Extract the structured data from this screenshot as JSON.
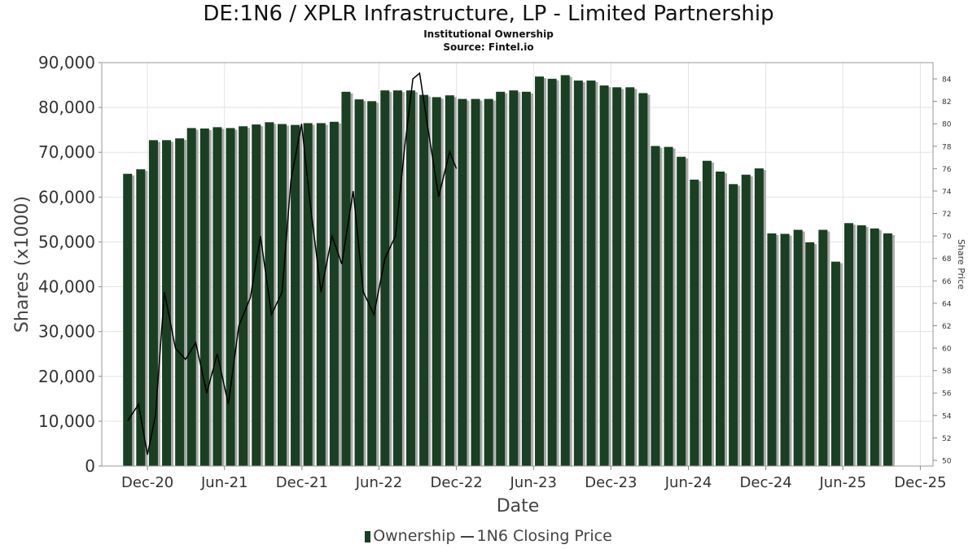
{
  "title": "DE:1N6 / XPLR Infrastructure, LP - Limited Partnership",
  "subtitle": "Institutional Ownership",
  "source": "Source: Fintel.io",
  "chart_data": {
    "type": "bar",
    "xlabel": "Date",
    "ylabel": "Shares (x1000)",
    "y2label": "Share Price",
    "ylim": [
      0,
      90000
    ],
    "y2lim": [
      50,
      85
    ],
    "xlim": [
      "2020-08-15",
      "2025-12-31"
    ],
    "y_ticks": [
      "0",
      "10,000",
      "20,000",
      "30,000",
      "40,000",
      "50,000",
      "60,000",
      "70,000",
      "80,000",
      "90,000"
    ],
    "y2_ticks": [
      "50",
      "52",
      "54",
      "56",
      "58",
      "60",
      "62",
      "64",
      "66",
      "68",
      "70",
      "72",
      "74",
      "76",
      "78",
      "80",
      "82",
      "84"
    ],
    "x_ticks": [
      {
        "label": "Dec-20",
        "date": "2020-12-01"
      },
      {
        "label": "Jun-21",
        "date": "2021-06-01"
      },
      {
        "label": "Dec-21",
        "date": "2021-12-01"
      },
      {
        "label": "Jun-22",
        "date": "2022-06-01"
      },
      {
        "label": "Dec-22",
        "date": "2022-12-01"
      },
      {
        "label": "Jun-23",
        "date": "2023-06-01"
      },
      {
        "label": "Dec-23",
        "date": "2023-12-01"
      },
      {
        "label": "Jun-24",
        "date": "2024-06-01"
      },
      {
        "label": "Dec-24",
        "date": "2024-12-01"
      },
      {
        "label": "Jun-25",
        "date": "2025-06-01"
      },
      {
        "label": "Dec-25",
        "date": "2025-12-01"
      }
    ],
    "grid": true,
    "legend_position": "bottom-center",
    "series": [
      {
        "name": "Ownership",
        "type": "bar",
        "color": "#1a3f22",
        "x": [
          "2020-10-15",
          "2020-11-15",
          "2020-12-15",
          "2021-01-15",
          "2021-02-15",
          "2021-03-15",
          "2021-04-15",
          "2021-05-15",
          "2021-06-15",
          "2021-07-15",
          "2021-08-15",
          "2021-09-15",
          "2021-10-15",
          "2021-11-15",
          "2021-12-15",
          "2022-01-15",
          "2022-02-15",
          "2022-03-15",
          "2022-04-15",
          "2022-05-15",
          "2022-06-15",
          "2022-07-15",
          "2022-08-15",
          "2022-09-15",
          "2022-10-15",
          "2022-11-15",
          "2022-12-15",
          "2023-01-15",
          "2023-02-15",
          "2023-03-15",
          "2023-04-15",
          "2023-05-15",
          "2023-06-15",
          "2023-07-15",
          "2023-08-15",
          "2023-09-15",
          "2023-10-15",
          "2023-11-15",
          "2023-12-15",
          "2024-01-15",
          "2024-02-15",
          "2024-03-15",
          "2024-04-15",
          "2024-05-15",
          "2024-06-15",
          "2024-07-15",
          "2024-08-15",
          "2024-09-15",
          "2024-10-15",
          "2024-11-15",
          "2024-12-15",
          "2025-01-15",
          "2025-02-15",
          "2025-03-15",
          "2025-04-15",
          "2025-05-15",
          "2025-06-15",
          "2025-07-15",
          "2025-08-15",
          "2025-09-15"
        ],
        "values": [
          65200,
          66200,
          72700,
          72700,
          73100,
          75400,
          75300,
          75600,
          75400,
          75800,
          76200,
          76700,
          76300,
          76100,
          76500,
          76500,
          76800,
          83500,
          81800,
          81400,
          83800,
          83800,
          83800,
          82800,
          82300,
          82700,
          81900,
          81900,
          81900,
          83500,
          83800,
          83500,
          86900,
          86400,
          87200,
          86000,
          86000,
          84900,
          84500,
          84500,
          83200,
          71400,
          71200,
          69000,
          63900,
          68100,
          65700,
          62900,
          65000,
          66400,
          51900,
          51800,
          52700,
          49900,
          52700,
          45600,
          54200,
          53700,
          53000,
          51900
        ]
      },
      {
        "name": "1N6 Closing Price",
        "type": "line",
        "color": "#000000",
        "x": [
          "2020-10-15",
          "2020-11-10",
          "2020-12-01",
          "2020-12-20",
          "2021-01-10",
          "2021-02-05",
          "2021-03-01",
          "2021-03-25",
          "2021-04-20",
          "2021-05-15",
          "2021-06-10",
          "2021-07-05",
          "2021-08-01",
          "2021-08-25",
          "2021-09-20",
          "2021-10-15",
          "2021-11-05",
          "2021-11-30",
          "2021-12-20",
          "2022-01-15",
          "2022-02-10",
          "2022-03-05",
          "2022-04-01",
          "2022-04-25",
          "2022-05-20",
          "2022-06-15",
          "2022-07-10",
          "2022-08-01",
          "2022-08-20",
          "2022-09-05",
          "2022-09-25",
          "2022-10-20",
          "2022-11-15",
          "2022-12-01"
        ],
        "values": [
          53.5,
          55,
          50.5,
          54,
          65,
          60,
          59,
          60.5,
          56,
          59.5,
          55,
          62,
          64.5,
          70,
          63,
          65,
          75,
          80,
          73,
          65,
          70,
          67.5,
          74,
          65,
          63,
          68,
          70,
          78,
          84,
          84.5,
          79.5,
          73.5,
          77.5,
          76
        ]
      }
    ]
  }
}
